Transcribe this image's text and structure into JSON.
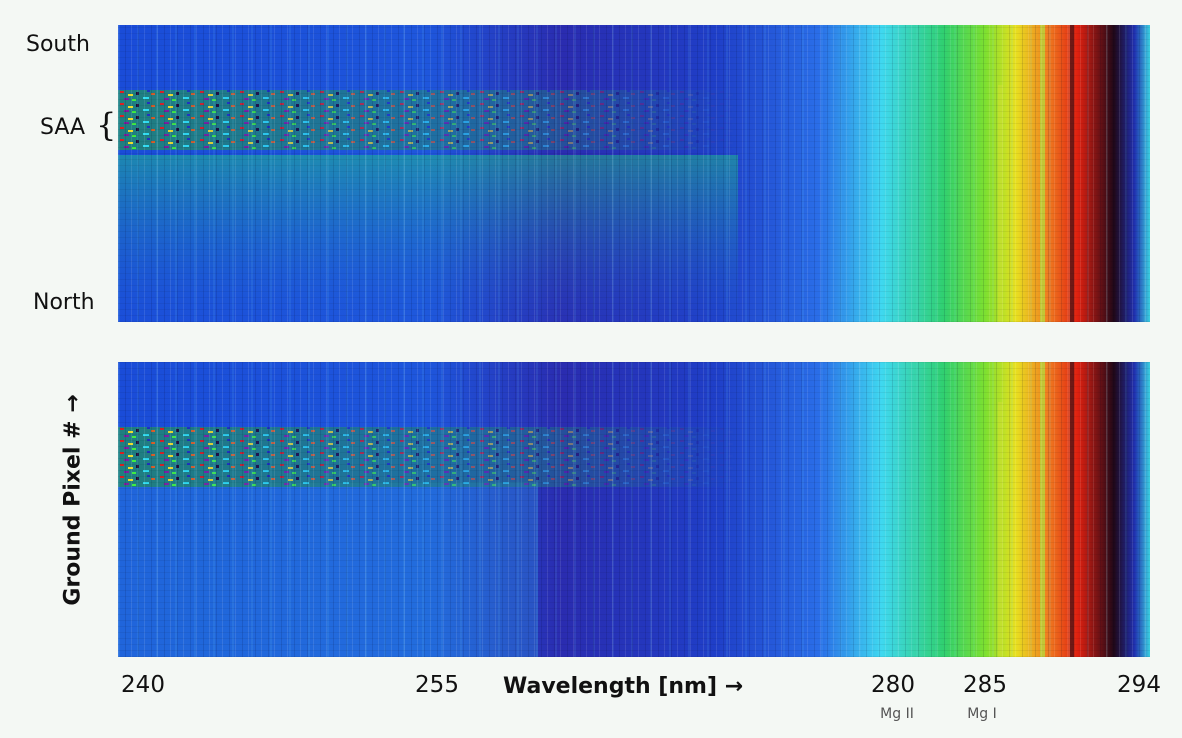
{
  "labels": {
    "south": "South",
    "saa": "SAA",
    "brace": "{",
    "north": "North",
    "y_axis": "Ground  Pixel #  →",
    "x_axis": "Wavelength [nm] →"
  },
  "x_ticks": [
    240,
    255,
    280,
    285,
    294
  ],
  "lines": [
    {
      "tick": 280,
      "label": "Mg II"
    },
    {
      "tick": 285,
      "label": "Mg I"
    }
  ]
}
